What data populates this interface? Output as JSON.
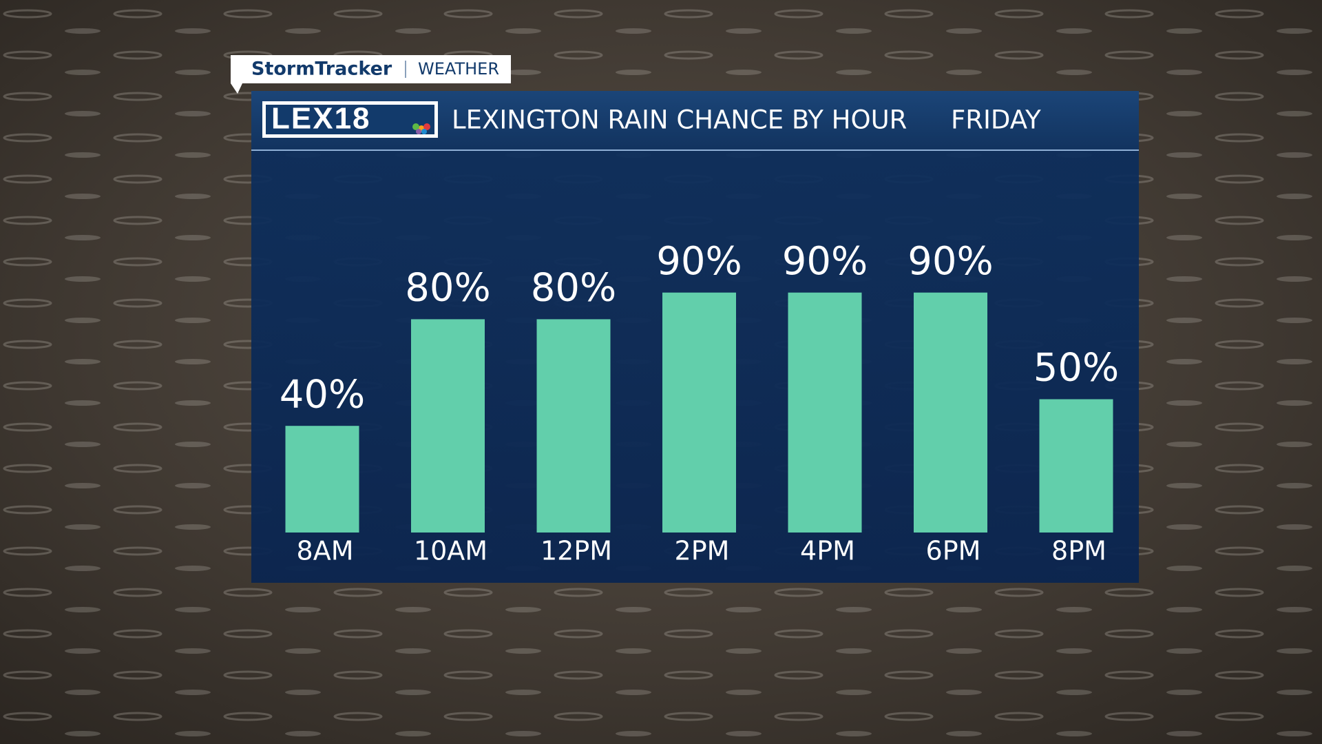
{
  "branding": {
    "show": "StormTracker",
    "segment": "WEATHER",
    "logo": "LEX18"
  },
  "chart_data": {
    "type": "bar",
    "title": "LEXINGTON RAIN CHANCE BY HOUR",
    "subtitle": "FRIDAY",
    "categories": [
      "8AM",
      "10AM",
      "12PM",
      "2PM",
      "4PM",
      "6PM",
      "8PM"
    ],
    "values": [
      40,
      80,
      80,
      90,
      90,
      90,
      50
    ],
    "value_labels": [
      "40%",
      "80%",
      "80%",
      "90%",
      "90%",
      "90%",
      "50%"
    ],
    "color": "#62cfab"
  }
}
